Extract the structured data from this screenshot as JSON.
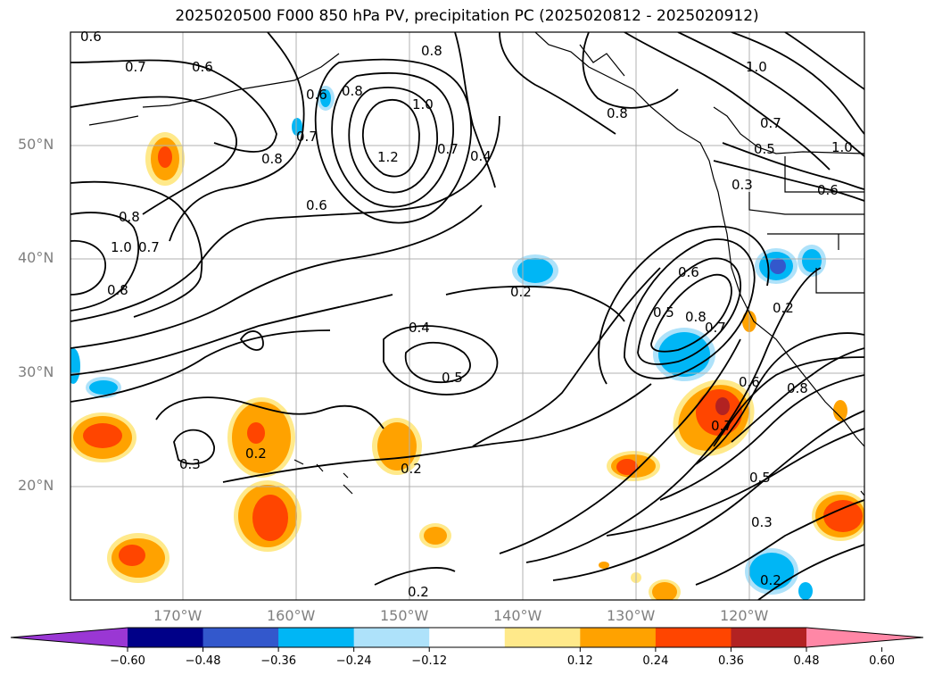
{
  "title": "2025020500 F000 850 hPa PV, precipitation PC (2025020812 - 2025020912)",
  "lat_labels": [
    "50°N",
    "40°N",
    "30°N",
    "20°N"
  ],
  "lon_labels": [
    "170°W",
    "160°W",
    "150°W",
    "140°W",
    "130°W",
    "120°W"
  ],
  "colorbar": {
    "ticks": [
      "−0.60",
      "−0.48",
      "−0.36",
      "−0.24",
      "−0.12",
      "0.12",
      "0.24",
      "0.36",
      "0.48",
      "0.60"
    ],
    "colors": [
      "#9a37d4",
      "#000088",
      "#3358cc",
      "#00b6f5",
      "#aee2fa",
      "#ffffff",
      "#ffe98a",
      "#ffa200",
      "#ff4500",
      "#b22222",
      "#ff87a6"
    ]
  },
  "contour_labels": [
    "0.6",
    "0.7",
    "0.6",
    "0.8",
    "0.6",
    "0.7",
    "0.8",
    "1.0",
    "1.2",
    "0.7",
    "0.4",
    "0.6",
    "0.8",
    "1.0",
    "0.8",
    "0.7",
    "0.8",
    "0.2",
    "0.4",
    "0.5",
    "0.5",
    "0.6",
    "0.8",
    "0.7",
    "0.6",
    "0.2",
    "0.8",
    "0.7",
    "0.5",
    "0.2",
    "0.3",
    "0.2",
    "0.2",
    "0.3",
    "0.2",
    "1.0",
    "0.7",
    "0.5",
    "0.3",
    "0.6",
    "1.0",
    "0.8"
  ],
  "colors": {
    "contour": "#000000",
    "grid": "#b0b0b0",
    "coast": "#000000",
    "axis_label": "#7f7f7f"
  }
}
